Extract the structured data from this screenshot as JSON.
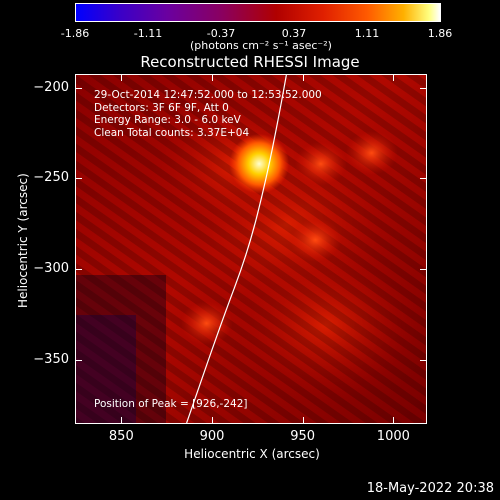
{
  "colorbar": {
    "ticks": [
      "-1.86",
      "-1.11",
      "-0.37",
      "0.37",
      "1.11",
      "1.86"
    ],
    "tick_values": [
      -1.86,
      -1.11,
      -0.37,
      0.37,
      1.11,
      1.86
    ],
    "unit_label": "(photons cm⁻² s⁻¹ asec⁻²)",
    "range": [
      -1.86,
      1.86
    ],
    "colormap": "red-temperature"
  },
  "chart_data": {
    "type": "heatmap",
    "title": "Reconstructed RHESSI Image",
    "xlabel": "Heliocentric X (arcsec)",
    "ylabel": "Heliocentric Y (arcsec)",
    "xlim": [
      825,
      1018
    ],
    "ylim": [
      -385,
      -193
    ],
    "xticks": [
      850,
      900,
      950,
      1000
    ],
    "yticks": [
      -200,
      -250,
      -300,
      -350
    ],
    "xtick_labels": [
      "850",
      "900",
      "950",
      "1000"
    ],
    "ytick_labels": [
      "−200",
      "−250",
      "−300",
      "−350"
    ],
    "annotations": [
      "29-Oct-2014 12:47:52.000 to 12:53:52.000",
      "Detectors: 3F 6F 9F, Att 0",
      "Energy Range: 3.0 - 6.0 keV",
      "Clean    Total counts: 3.37E+04"
    ],
    "peak_label": "Position of Peak = [926,-242]",
    "peak": {
      "x": 926,
      "y": -242
    },
    "secondary_sources": [
      {
        "x": 957,
        "y": -284
      },
      {
        "x": 897,
        "y": -330
      },
      {
        "x": 988,
        "y": -236
      },
      {
        "x": 960,
        "y": -242
      }
    ],
    "limb_curve": [
      [
        886,
        -385
      ],
      [
        905,
        -330
      ],
      [
        920,
        -290
      ],
      [
        930,
        -250
      ],
      [
        937,
        -215
      ],
      [
        941,
        -193
      ]
    ]
  },
  "timestamp": "18-May-2022 20:38"
}
